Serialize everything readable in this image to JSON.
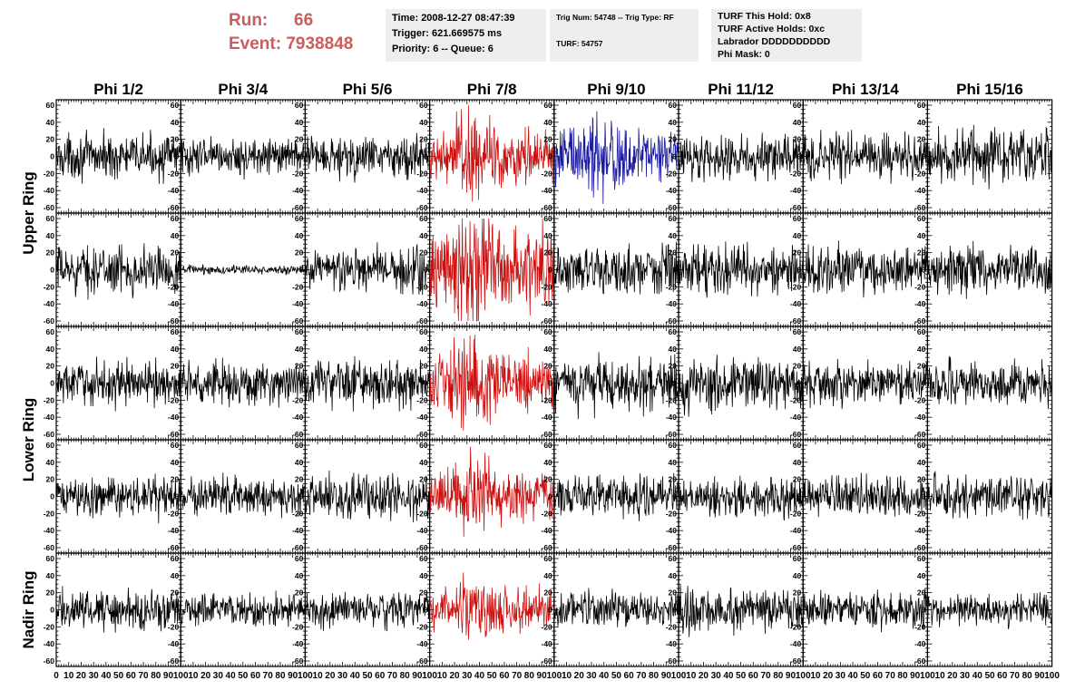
{
  "header": {
    "run_label": "Run:",
    "run_value": "66",
    "event_label": "Event:",
    "event_value": "7938848",
    "time": "Time: 2008-12-27 08:47:39",
    "trigger": "Trigger: 621.669575 ms",
    "priority": "Priority: 6 -- Queue: 6",
    "trig_num": "Trig Num: 54748 -- Trig Type: RF",
    "turf": "TURF: 54757",
    "turf_hold": "TURF This Hold: 0x8",
    "turf_active": "TURF Active Holds: 0xc",
    "labrador": "Labrador DDDDDDDDDD",
    "phi_mask": "Phi Mask: 0"
  },
  "colors": {
    "header_text": "#cd5c5c",
    "box_bg": "#eeeeee",
    "trace_default": "#000000",
    "trace_red": "#cc1111",
    "trace_blue": "#1a1a9c"
  },
  "chart_data": {
    "type": "line",
    "columns": [
      "Phi 1/2",
      "Phi 3/4",
      "Phi 5/6",
      "Phi 7/8",
      "Phi 9/10",
      "Phi 11/12",
      "Phi 13/14",
      "Phi 15/16"
    ],
    "rows": [
      "Upper Ring",
      "",
      "Lower Ring",
      "",
      "Nadir Ring"
    ],
    "row_titles": [
      {
        "label": "Upper Ring",
        "spans_rows": [
          0,
          1
        ]
      },
      {
        "label": "Lower Ring",
        "spans_rows": [
          2,
          3
        ]
      },
      {
        "label": "Nadir Ring",
        "spans_rows": [
          4,
          4
        ]
      }
    ],
    "xlim": [
      0,
      100
    ],
    "ylim": [
      -60,
      60
    ],
    "y_ticks": [
      60,
      40,
      20,
      0,
      -20,
      -40,
      -60
    ],
    "x_ticks": [
      0,
      10,
      20,
      30,
      40,
      50,
      60,
      70,
      80,
      90,
      100
    ],
    "samples_per_trace": 260,
    "trace_amplitude": [
      [
        12,
        10,
        12,
        16,
        15,
        12,
        13,
        15
      ],
      [
        13,
        2.5,
        13,
        22,
        14,
        13,
        13,
        13
      ],
      [
        12,
        12,
        13,
        16,
        15,
        15,
        12,
        12
      ],
      [
        11,
        11,
        12,
        14,
        12,
        11,
        11,
        12
      ],
      [
        11,
        9,
        10,
        12,
        10,
        13,
        10,
        9
      ]
    ],
    "trace_color": [
      [
        "default",
        "default",
        "default",
        "red",
        "blue",
        "default",
        "default",
        "default"
      ],
      [
        "default",
        "default",
        "default",
        "red",
        "default",
        "default",
        "default",
        "default"
      ],
      [
        "default",
        "default",
        "default",
        "red",
        "default",
        "default",
        "default",
        "default"
      ],
      [
        "default",
        "default",
        "default",
        "red",
        "default",
        "default",
        "default",
        "default"
      ],
      [
        "default",
        "default",
        "default",
        "red",
        "default",
        "default",
        "default",
        "default"
      ]
    ],
    "signal_time_range": [
      12,
      60
    ]
  }
}
